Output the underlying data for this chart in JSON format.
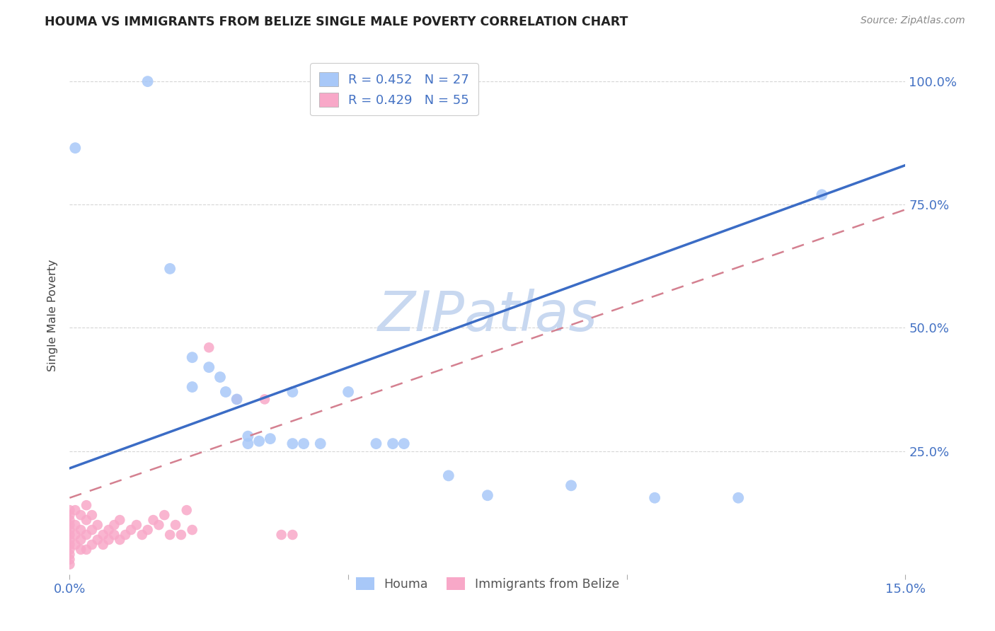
{
  "title": "HOUMA VS IMMIGRANTS FROM BELIZE SINGLE MALE POVERTY CORRELATION CHART",
  "source": "Source: ZipAtlas.com",
  "ylabel": "Single Male Poverty",
  "y_ticks": [
    0.0,
    0.25,
    0.5,
    0.75,
    1.0
  ],
  "y_tick_labels": [
    "",
    "25.0%",
    "50.0%",
    "75.0%",
    "100.0%"
  ],
  "x_min": 0.0,
  "x_max": 0.15,
  "y_min": 0.0,
  "y_max": 1.05,
  "legend_entries": [
    {
      "label": "R = 0.452   N = 27",
      "color": "#a8c8f8"
    },
    {
      "label": "R = 0.429   N = 55",
      "color": "#f8a8c8"
    }
  ],
  "houma_scatter": [
    [
      0.001,
      0.865
    ],
    [
      0.014,
      1.0
    ],
    [
      0.018,
      0.62
    ],
    [
      0.022,
      0.44
    ],
    [
      0.022,
      0.38
    ],
    [
      0.025,
      0.42
    ],
    [
      0.027,
      0.4
    ],
    [
      0.028,
      0.37
    ],
    [
      0.03,
      0.355
    ],
    [
      0.032,
      0.28
    ],
    [
      0.032,
      0.265
    ],
    [
      0.034,
      0.27
    ],
    [
      0.036,
      0.275
    ],
    [
      0.04,
      0.37
    ],
    [
      0.04,
      0.265
    ],
    [
      0.042,
      0.265
    ],
    [
      0.045,
      0.265
    ],
    [
      0.05,
      0.37
    ],
    [
      0.055,
      0.265
    ],
    [
      0.058,
      0.265
    ],
    [
      0.06,
      0.265
    ],
    [
      0.068,
      0.2
    ],
    [
      0.075,
      0.16
    ],
    [
      0.09,
      0.18
    ],
    [
      0.105,
      0.155
    ],
    [
      0.12,
      0.155
    ],
    [
      0.135,
      0.77
    ]
  ],
  "belize_scatter": [
    [
      0.0,
      0.05
    ],
    [
      0.0,
      0.06
    ],
    [
      0.0,
      0.07
    ],
    [
      0.0,
      0.08
    ],
    [
      0.0,
      0.09
    ],
    [
      0.0,
      0.1
    ],
    [
      0.0,
      0.11
    ],
    [
      0.0,
      0.12
    ],
    [
      0.0,
      0.13
    ],
    [
      0.0,
      0.04
    ],
    [
      0.0,
      0.03
    ],
    [
      0.0,
      0.02
    ],
    [
      0.001,
      0.06
    ],
    [
      0.001,
      0.08
    ],
    [
      0.001,
      0.1
    ],
    [
      0.001,
      0.13
    ],
    [
      0.002,
      0.05
    ],
    [
      0.002,
      0.07
    ],
    [
      0.002,
      0.09
    ],
    [
      0.002,
      0.12
    ],
    [
      0.003,
      0.05
    ],
    [
      0.003,
      0.08
    ],
    [
      0.003,
      0.11
    ],
    [
      0.003,
      0.14
    ],
    [
      0.004,
      0.06
    ],
    [
      0.004,
      0.09
    ],
    [
      0.004,
      0.12
    ],
    [
      0.005,
      0.07
    ],
    [
      0.005,
      0.1
    ],
    [
      0.006,
      0.06
    ],
    [
      0.006,
      0.08
    ],
    [
      0.007,
      0.07
    ],
    [
      0.007,
      0.09
    ],
    [
      0.008,
      0.08
    ],
    [
      0.008,
      0.1
    ],
    [
      0.009,
      0.07
    ],
    [
      0.009,
      0.11
    ],
    [
      0.01,
      0.08
    ],
    [
      0.011,
      0.09
    ],
    [
      0.012,
      0.1
    ],
    [
      0.013,
      0.08
    ],
    [
      0.014,
      0.09
    ],
    [
      0.015,
      0.11
    ],
    [
      0.016,
      0.1
    ],
    [
      0.017,
      0.12
    ],
    [
      0.018,
      0.08
    ],
    [
      0.019,
      0.1
    ],
    [
      0.02,
      0.08
    ],
    [
      0.021,
      0.13
    ],
    [
      0.022,
      0.09
    ],
    [
      0.025,
      0.46
    ],
    [
      0.03,
      0.355
    ],
    [
      0.035,
      0.355
    ],
    [
      0.038,
      0.08
    ],
    [
      0.04,
      0.08
    ]
  ],
  "houma_line_x": [
    0.0,
    0.15
  ],
  "houma_line_y": [
    0.215,
    0.83
  ],
  "belize_line_x": [
    0.0,
    0.15
  ],
  "belize_line_y": [
    0.155,
    0.74
  ],
  "houma_line_color": "#3b6cc5",
  "belize_line_color": "#d48090",
  "houma_scatter_color": "#a8c8f8",
  "belize_scatter_color": "#f8a8c8",
  "watermark": "ZIPatlas",
  "watermark_color": "#c8d8f0",
  "background_color": "#ffffff",
  "grid_color": "#cccccc"
}
